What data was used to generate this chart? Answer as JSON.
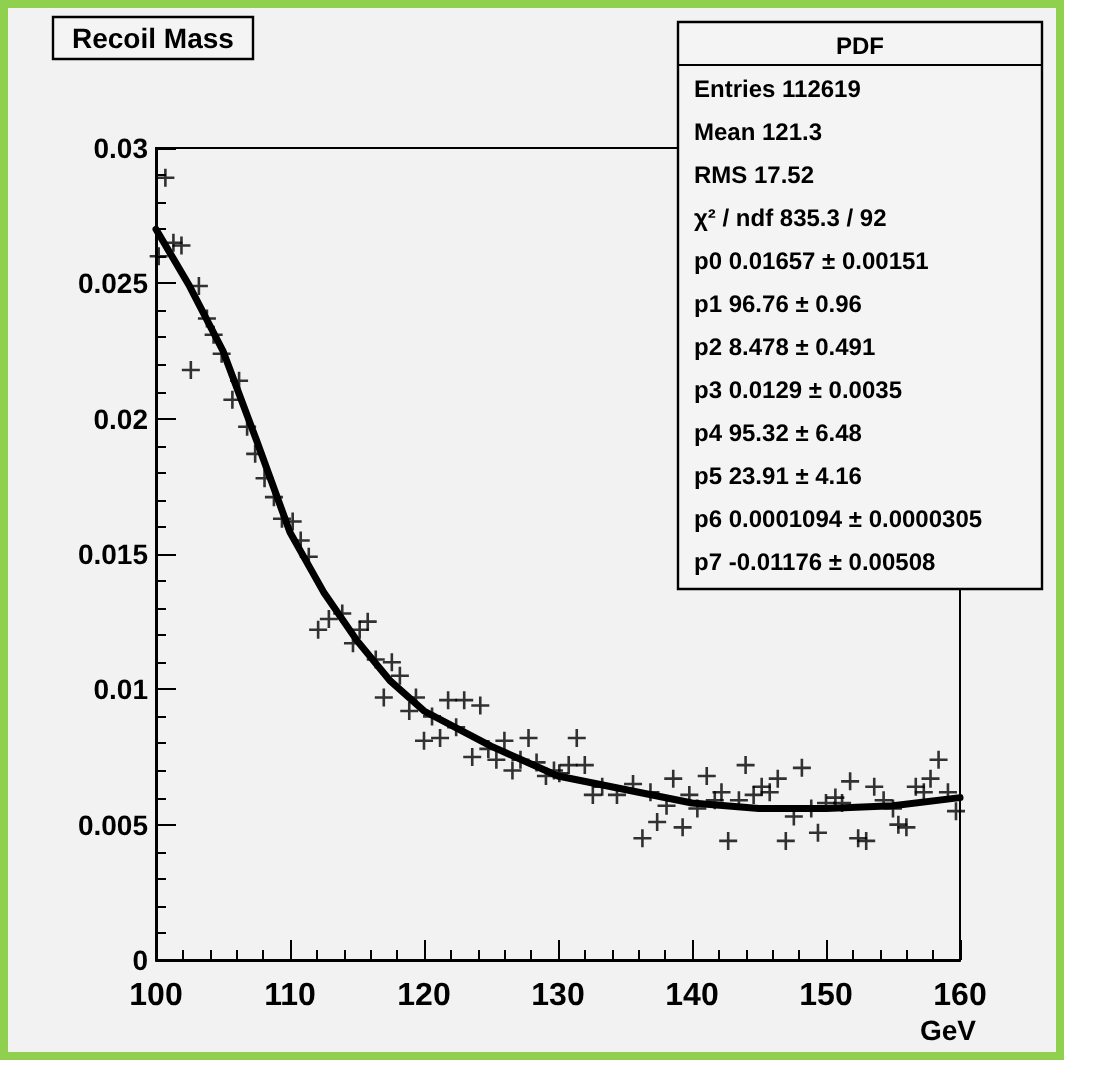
{
  "chart_data": {
    "type": "scatter",
    "title": "Recoil Mass",
    "xlabel": "GeV",
    "xlim": [
      100,
      160
    ],
    "xticks": [
      100,
      110,
      120,
      130,
      140,
      150,
      160
    ],
    "ylim": [
      0,
      0.03
    ],
    "yticks": [
      0,
      0.005,
      0.01,
      0.015,
      0.02,
      0.025,
      0.03
    ],
    "grid": false,
    "series": [
      {
        "marker": "cross",
        "color": "#000000",
        "x": [
          100.2,
          100.7,
          101.3,
          101.9,
          102.6,
          103.2,
          103.8,
          104.3,
          104.9,
          105.7,
          106.2,
          106.8,
          107.4,
          108.1,
          108.8,
          109.4,
          110.2,
          110.8,
          111.4,
          112.1,
          112.9,
          113.9,
          114.7,
          115.2,
          115.8,
          116.4,
          117.0,
          117.6,
          118.2,
          118.9,
          119.4,
          120.0,
          120.6,
          121.2,
          121.8,
          122.4,
          123.0,
          123.6,
          124.2,
          124.8,
          125.4,
          126.0,
          126.6,
          127.2,
          127.8,
          128.4,
          129.1,
          129.7,
          130.1,
          130.8,
          131.4,
          132.0,
          132.6,
          133.3,
          134.4,
          135.6,
          136.3,
          136.9,
          137.4,
          138.1,
          138.6,
          139.3,
          139.8,
          140.4,
          141.1,
          141.7,
          142.2,
          142.7,
          143.5,
          144.0,
          144.6,
          145.2,
          145.8,
          146.4,
          147.0,
          147.6,
          148.2,
          148.9,
          149.4,
          150.0,
          150.7,
          151.2,
          151.8,
          152.4,
          153.0,
          153.6,
          154.3,
          155.0,
          155.4,
          156.0,
          156.7,
          157.3,
          157.8,
          158.4,
          159.1,
          159.7
        ],
        "values": [
          0.026,
          0.0289,
          0.0265,
          0.0264,
          0.0218,
          0.0249,
          0.0237,
          0.0231,
          0.0224,
          0.0207,
          0.0214,
          0.0197,
          0.0187,
          0.0178,
          0.0171,
          0.0163,
          0.0162,
          0.0155,
          0.0149,
          0.0122,
          0.0126,
          0.0128,
          0.0117,
          0.0122,
          0.0125,
          0.0111,
          0.0097,
          0.011,
          0.0105,
          0.0092,
          0.0097,
          0.0081,
          0.009,
          0.0082,
          0.0096,
          0.0086,
          0.0096,
          0.0075,
          0.0094,
          0.0078,
          0.0074,
          0.0081,
          0.007,
          0.0074,
          0.0082,
          0.0073,
          0.0068,
          0.007,
          0.0069,
          0.0072,
          0.0082,
          0.0072,
          0.0061,
          0.0064,
          0.0061,
          0.0065,
          0.0045,
          0.0062,
          0.0051,
          0.0057,
          0.0067,
          0.0049,
          0.0061,
          0.0056,
          0.0068,
          0.0059,
          0.0062,
          0.0044,
          0.0059,
          0.0072,
          0.0061,
          0.0064,
          0.0062,
          0.0067,
          0.0044,
          0.0053,
          0.0071,
          0.0056,
          0.0047,
          0.0058,
          0.006,
          0.0058,
          0.0066,
          0.0045,
          0.0044,
          0.0064,
          0.0059,
          0.0056,
          0.005,
          0.0049,
          0.0064,
          0.0062,
          0.0067,
          0.0074,
          0.0062,
          0.0055
        ]
      },
      {
        "type": "line",
        "marker": "none",
        "line_style": "solid",
        "color": "#000000",
        "x": [
          100,
          102.5,
          105,
          107.5,
          110,
          112.5,
          115,
          117.5,
          120,
          125,
          130,
          135,
          140,
          145,
          150,
          155,
          160
        ],
        "values": [
          0.027,
          0.0249,
          0.0225,
          0.0192,
          0.0158,
          0.0136,
          0.0118,
          0.0103,
          0.0092,
          0.0079,
          0.0068,
          0.0063,
          0.0058,
          0.0056,
          0.0056,
          0.0057,
          0.006
        ]
      }
    ],
    "annotations": [
      "PDF",
      "Entries 112619",
      "Mean 121.3",
      "RMS 17.52",
      "χ² / ndf 835.3 / 92",
      "p0 0.01657 ± 0.00151",
      "p1 96.76 ± 0.96",
      "p2 8.478 ± 0.491",
      "p3 0.0129 ± 0.0035",
      "p4 95.32 ± 6.48",
      "p5 23.91 ± 4.16",
      "p6 0.0001094 ± 0.0000305",
      "p7 -0.01176 ± 0.00508"
    ]
  }
}
